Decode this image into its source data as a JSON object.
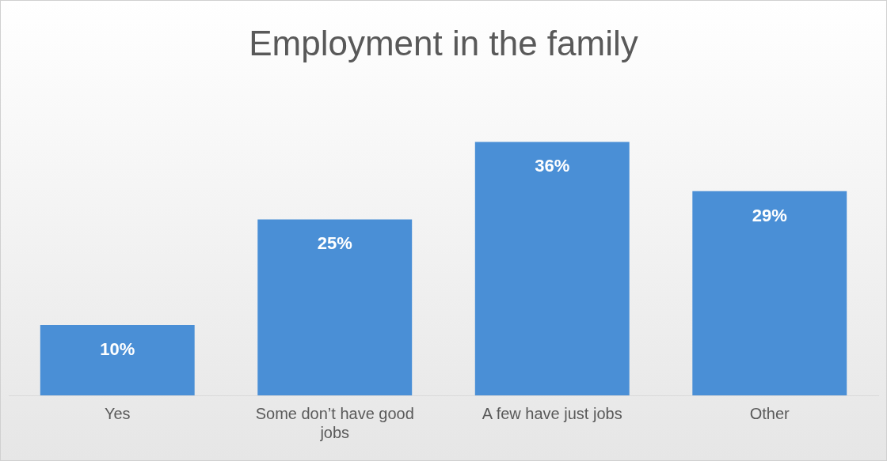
{
  "chart_data": {
    "type": "bar",
    "title": "Employment in the family",
    "categories": [
      "Yes",
      "Some don’t have good jobs",
      "A few have just jobs",
      "Other"
    ],
    "values": [
      10,
      25,
      36,
      29
    ],
    "color": "#4a8fd6",
    "value_labels": [
      "10%",
      "25%",
      "36%",
      "29%"
    ],
    "grid": false,
    "legend": false
  }
}
